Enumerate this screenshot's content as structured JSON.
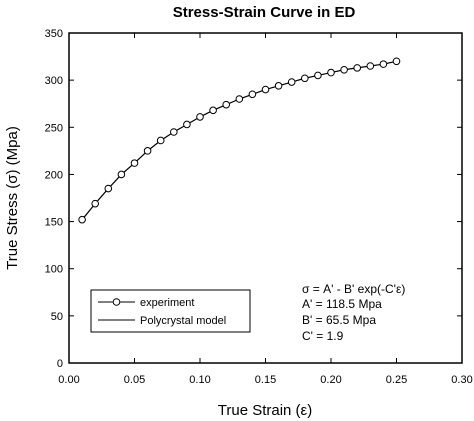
{
  "chart_data": {
    "type": "line",
    "title": "Stress-Strain Curve in ED",
    "xlabel": "True Strain (ε)",
    "ylabel": "True Stress (σ) (Mpa)",
    "xlim": [
      0.0,
      0.3
    ],
    "ylim": [
      0,
      350
    ],
    "x_ticks": [
      "0.00",
      "0.05",
      "0.10",
      "0.15",
      "0.20",
      "0.25",
      "0.30"
    ],
    "y_ticks": [
      "0",
      "50",
      "100",
      "150",
      "200",
      "250",
      "300",
      "350"
    ],
    "grid": false,
    "legend_position": "bottom-left",
    "series": [
      {
        "name": "experiment",
        "marker": "circle",
        "x": [
          0.01,
          0.02,
          0.03,
          0.04,
          0.05,
          0.06,
          0.07,
          0.08,
          0.09,
          0.1,
          0.11,
          0.12,
          0.13,
          0.14,
          0.15,
          0.16,
          0.17,
          0.18,
          0.19,
          0.2,
          0.21,
          0.22,
          0.23,
          0.24,
          0.25
        ],
        "y": [
          152,
          169,
          185,
          200,
          212,
          225,
          236,
          245,
          253,
          261,
          268,
          274,
          280,
          285,
          290,
          294,
          298,
          302,
          305,
          308,
          311,
          313,
          315,
          317,
          320
        ]
      },
      {
        "name": "Polycrystal model",
        "marker": "none",
        "x": [
          0.01,
          0.02,
          0.03,
          0.04,
          0.05,
          0.06,
          0.07,
          0.08,
          0.09,
          0.1,
          0.11,
          0.12,
          0.13,
          0.14,
          0.15,
          0.16,
          0.17,
          0.18,
          0.19,
          0.2,
          0.21,
          0.22,
          0.23,
          0.24,
          0.25
        ],
        "y": [
          152,
          169,
          185,
          200,
          212,
          225,
          236,
          245,
          253,
          261,
          268,
          274,
          280,
          285,
          290,
          294,
          298,
          302,
          305,
          308,
          311,
          313,
          315,
          317,
          320
        ]
      }
    ],
    "annotations": [
      "σ = A' - B' exp(-C'ε)",
      "A' = 118.5 Mpa",
      "B' = 65.5 Mpa",
      "C' = 1.9"
    ]
  }
}
